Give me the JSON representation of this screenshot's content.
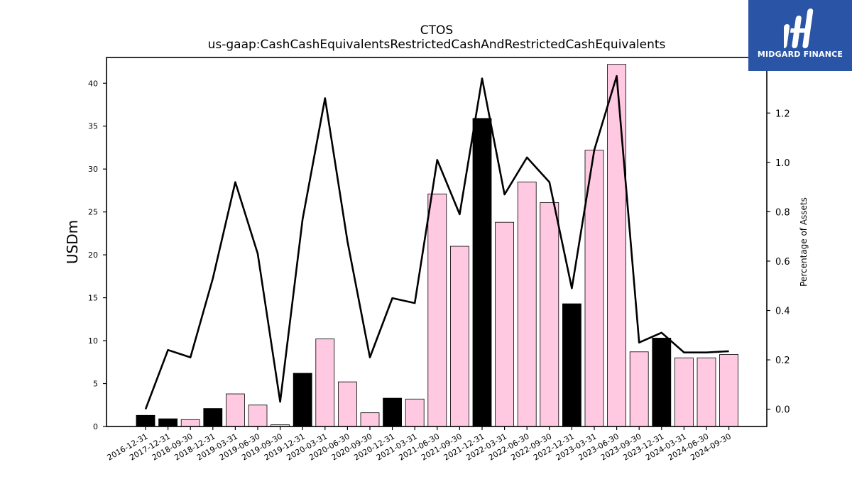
{
  "logo": {
    "text": "MIDGARD FINANCE",
    "icon": "midgard-logo-icon",
    "background": "#2a55a6"
  },
  "chart_data": {
    "type": "bar",
    "title": "CTOS",
    "subtitle": "us-gaap:CashCashEquivalentsRestrictedCashAndRestrictedCashEquivalents",
    "ylabel": "USDm",
    "y2label": "Percentage of Assets",
    "ylim": [
      0,
      43
    ],
    "y2lim": [
      -0.07,
      1.425
    ],
    "yticks": [
      0,
      5,
      10,
      15,
      20,
      25,
      30,
      35,
      40
    ],
    "y2ticks": [
      0.0,
      0.2,
      0.4,
      0.6,
      0.8,
      1.0,
      1.2
    ],
    "grid": false,
    "categories": [
      "2016-12-31",
      "2017-12-31",
      "2018-09-30",
      "2018-12-31",
      "2019-03-31",
      "2019-06-30",
      "2019-09-30",
      "2019-12-31",
      "2020-03-31",
      "2020-06-30",
      "2020-09-30",
      "2020-12-31",
      "2021-03-31",
      "2021-06-30",
      "2021-09-30",
      "2021-12-31",
      "2022-03-31",
      "2022-06-30",
      "2022-09-30",
      "2022-12-31",
      "2023-03-31",
      "2023-06-30",
      "2023-09-30",
      "2023-12-31",
      "2024-03-31",
      "2024-06-30",
      "2024-09-30"
    ],
    "series": [
      {
        "type": "bar",
        "values": [
          1.3,
          0.9,
          0.8,
          2.1,
          3.8,
          2.5,
          0.2,
          6.2,
          10.2,
          5.2,
          1.6,
          3.3,
          3.2,
          27.1,
          21.0,
          35.9,
          23.8,
          28.5,
          26.1,
          14.3,
          32.2,
          42.2,
          8.7,
          10.3,
          8.0,
          8.0,
          8.4
        ],
        "colors": [
          "#000000",
          "#000000",
          "#ffc9e2",
          "#000000",
          "#ffc9e2",
          "#ffc9e2",
          "#ffc9e2",
          "#000000",
          "#ffc9e2",
          "#ffc9e2",
          "#ffc9e2",
          "#000000",
          "#ffc9e2",
          "#ffc9e2",
          "#ffc9e2",
          "#000000",
          "#ffc9e2",
          "#ffc9e2",
          "#ffc9e2",
          "#000000",
          "#ffc9e2",
          "#ffc9e2",
          "#ffc9e2",
          "#000000",
          "#ffc9e2",
          "#ffc9e2",
          "#ffc9e2"
        ]
      },
      {
        "type": "line",
        "axis": "right",
        "color": "#000000",
        "values": [
          0.0,
          0.24,
          0.21,
          0.53,
          0.92,
          0.63,
          0.03,
          0.77,
          1.26,
          0.68,
          0.21,
          0.45,
          0.43,
          1.01,
          0.79,
          1.34,
          0.87,
          1.02,
          0.92,
          0.49,
          1.05,
          1.35,
          0.27,
          0.31,
          0.23,
          0.23,
          0.235
        ]
      }
    ]
  }
}
